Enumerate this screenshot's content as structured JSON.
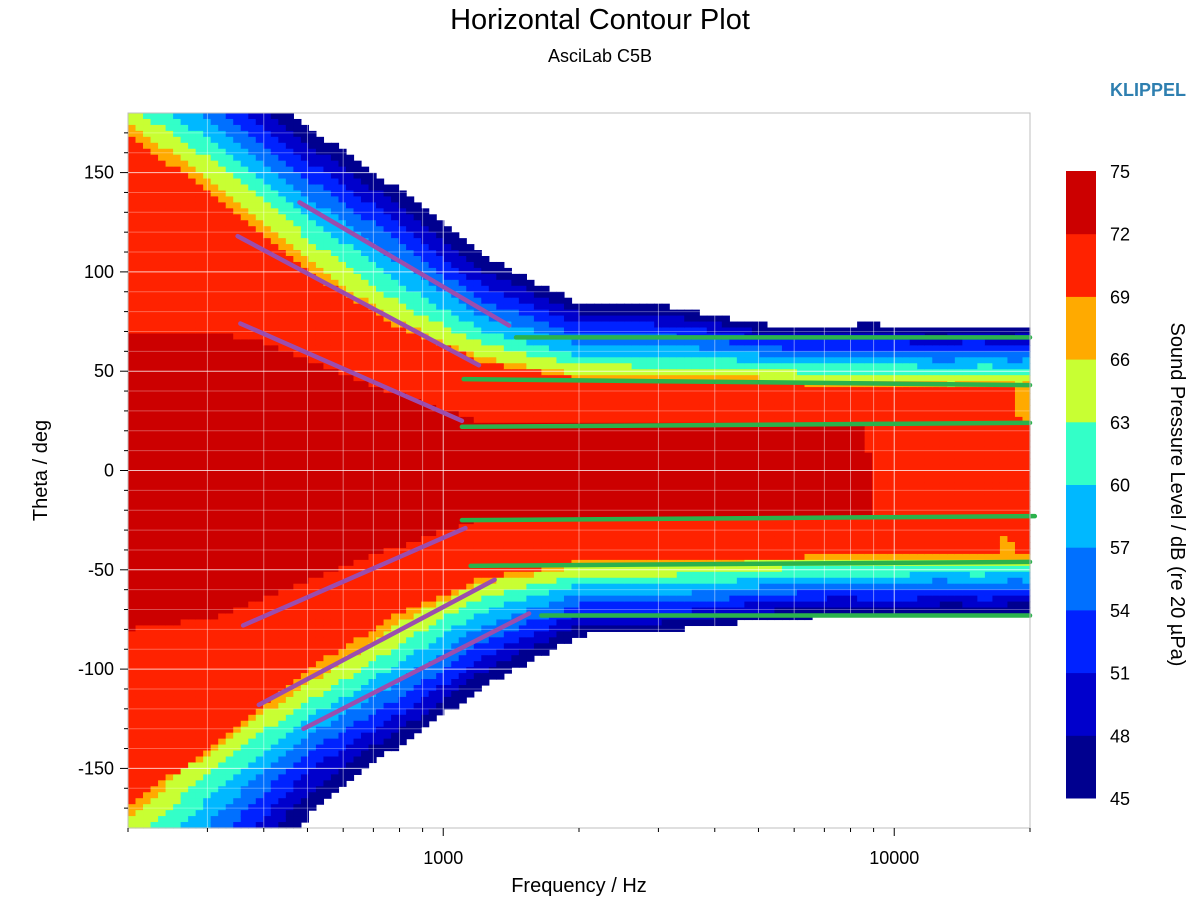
{
  "header": {
    "title": "Horizontal Contour Plot",
    "subtitle": "AsciLab C5B",
    "brand": "KLIPPEL"
  },
  "chart_data": {
    "type": "heatmap",
    "title": "Horizontal Contour Plot",
    "subtitle": "AsciLab C5B",
    "xlabel": "Frequency / Hz",
    "ylabel": "Theta / deg",
    "colorbar_label": "Sound Pressure Level / dB (re 20 µPa)",
    "x_scale": "log",
    "xlim": [
      200,
      20000
    ],
    "ylim": [
      -180,
      180
    ],
    "x_tick_labels": [
      "1000",
      "10000"
    ],
    "x_ticks": [
      1000,
      10000
    ],
    "y_ticks": [
      150,
      100,
      50,
      0,
      -50,
      -100,
      -150
    ],
    "y_tick_labels": [
      "150",
      "100",
      "50",
      "0",
      "-50",
      "-100",
      "-150"
    ],
    "color_levels": [
      45,
      48,
      51,
      54,
      57,
      60,
      63,
      66,
      69,
      72,
      75
    ],
    "colorbar_labels": [
      "75",
      "72",
      "69",
      "66",
      "63",
      "60",
      "57",
      "54",
      "51",
      "48",
      "45"
    ],
    "level_colors": [
      "#00008f",
      "#0000cc",
      "#0022ff",
      "#0070ff",
      "#00b8ff",
      "#33ffc8",
      "#c8ff33",
      "#ffaa00",
      "#ff2200",
      "#cc0000",
      "#840000"
    ],
    "contour_profile": {
      "frequencies": [
        200,
        300,
        500,
        800,
        1200,
        2000,
        3000,
        5000,
        8000,
        12000,
        20000
      ],
      "half_width_66": [
        172,
        150,
        120,
        85,
        65,
        55,
        55,
        50,
        48,
        45,
        45
      ],
      "half_width_69": [
        170,
        140,
        100,
        72,
        55,
        46,
        45,
        44,
        43,
        42,
        42
      ],
      "half_width_72": [
        80,
        75,
        55,
        38,
        25,
        24,
        24,
        24,
        24,
        24,
        24
      ],
      "half_width_63_offset": [
        20,
        20,
        22,
        20,
        12,
        7,
        6,
        6,
        5,
        5,
        5
      ],
      "level_spacing_deg": [
        11,
        11,
        10,
        9,
        7,
        5,
        5,
        4,
        4,
        4,
        4
      ],
      "peak_level": [
        72,
        72,
        72,
        72,
        72,
        72,
        72,
        72,
        72,
        70,
        69
      ]
    },
    "guide_lines": [
      {
        "color": "#9b4dae",
        "points": [
          [
            350,
            118
          ],
          [
            1200,
            53
          ]
        ]
      },
      {
        "color": "#9b4dae",
        "points": [
          [
            480,
            135
          ],
          [
            1400,
            73
          ]
        ]
      },
      {
        "color": "#9b4dae",
        "points": [
          [
            355,
            74
          ],
          [
            1100,
            25
          ]
        ]
      },
      {
        "color": "#9b4dae",
        "points": [
          [
            360,
            -78
          ],
          [
            1120,
            -29
          ]
        ]
      },
      {
        "color": "#9b4dae",
        "points": [
          [
            390,
            -118
          ],
          [
            1300,
            -55
          ]
        ]
      },
      {
        "color": "#9b4dae",
        "points": [
          [
            490,
            -130
          ],
          [
            1550,
            -72
          ]
        ]
      },
      {
        "color": "#2bb24c",
        "points": [
          [
            1450,
            67
          ],
          [
            20000,
            67
          ]
        ]
      },
      {
        "color": "#2bb24c",
        "points": [
          [
            1110,
            46
          ],
          [
            20000,
            43
          ]
        ]
      },
      {
        "color": "#2bb24c",
        "points": [
          [
            1100,
            22
          ],
          [
            20000,
            24
          ]
        ]
      },
      {
        "color": "#2bb24c",
        "points": [
          [
            1100,
            -25
          ],
          [
            20500,
            -23
          ]
        ]
      },
      {
        "color": "#2bb24c",
        "points": [
          [
            1150,
            -48
          ],
          [
            20000,
            -46
          ]
        ]
      },
      {
        "color": "#2bb24c",
        "points": [
          [
            1650,
            -73
          ],
          [
            20000,
            -73
          ]
        ]
      }
    ]
  }
}
